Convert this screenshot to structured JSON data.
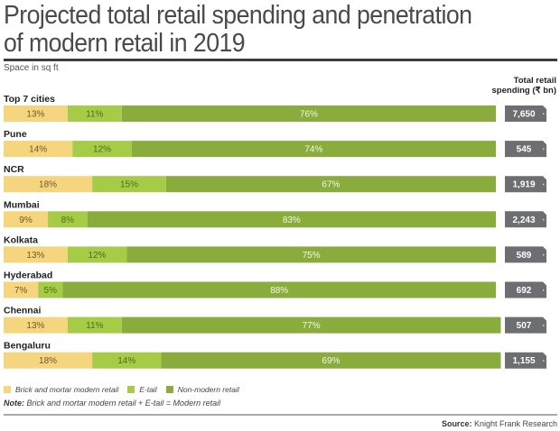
{
  "header": {
    "title_line1": "Projected total retail spending and penetration",
    "title_line2": "of modern retail in 2019",
    "subtitle": "Space in sq ft",
    "column_header_line1": "Total retail",
    "column_header_line2": "spending (₹ bn)"
  },
  "colors": {
    "brick_and_mortar": "#f6d57f",
    "etail": "#a6cc47",
    "non_modern": "#8aac3c",
    "badge": "#6d6e72",
    "brick_label": "#6b5a2a",
    "etail_label": "#4e6a1c",
    "non_modern_label": "#f3f7e6"
  },
  "chart_data": {
    "type": "bar",
    "orientation": "horizontal",
    "stacked": true,
    "title": "Projected total retail spending and penetration of modern retail in 2019",
    "subtitle": "Space in sq ft",
    "unit": "%",
    "xlim": [
      0,
      100
    ],
    "grid": false,
    "categories": [
      "Top 7 cities",
      "Pune",
      "NCR",
      "Mumbai",
      "Kolkata",
      "Hyderabad",
      "Chennai",
      "Bengaluru"
    ],
    "series": [
      {
        "name": "Brick and mortar modern retail",
        "values": [
          13,
          14,
          18,
          9,
          13,
          7,
          13,
          18
        ]
      },
      {
        "name": "E-tail",
        "values": [
          11,
          12,
          15,
          8,
          12,
          5,
          11,
          14
        ]
      },
      {
        "name": "Non-modern retail",
        "values": [
          76,
          74,
          67,
          83,
          75,
          88,
          77,
          69
        ]
      }
    ],
    "total_retail_spending": {
      "label": "Total retail spending (₹ bn)",
      "display": [
        "7,650",
        "545",
        "1,919",
        "2,243",
        "589",
        "692",
        "507",
        "1,155"
      ],
      "values": [
        7650,
        545,
        1919,
        2243,
        589,
        692,
        507,
        1155
      ]
    },
    "legend": [
      "Brick and mortar modern retail",
      "E-tail",
      "Non-modern retail"
    ],
    "legend_position": "bottom-left"
  },
  "footer": {
    "note_label": "Note:",
    "note_text": " Brick and mortar modern retail + E-tail = Modern retail",
    "source_label": "Source:",
    "source_text": " Knight Frank Research"
  }
}
